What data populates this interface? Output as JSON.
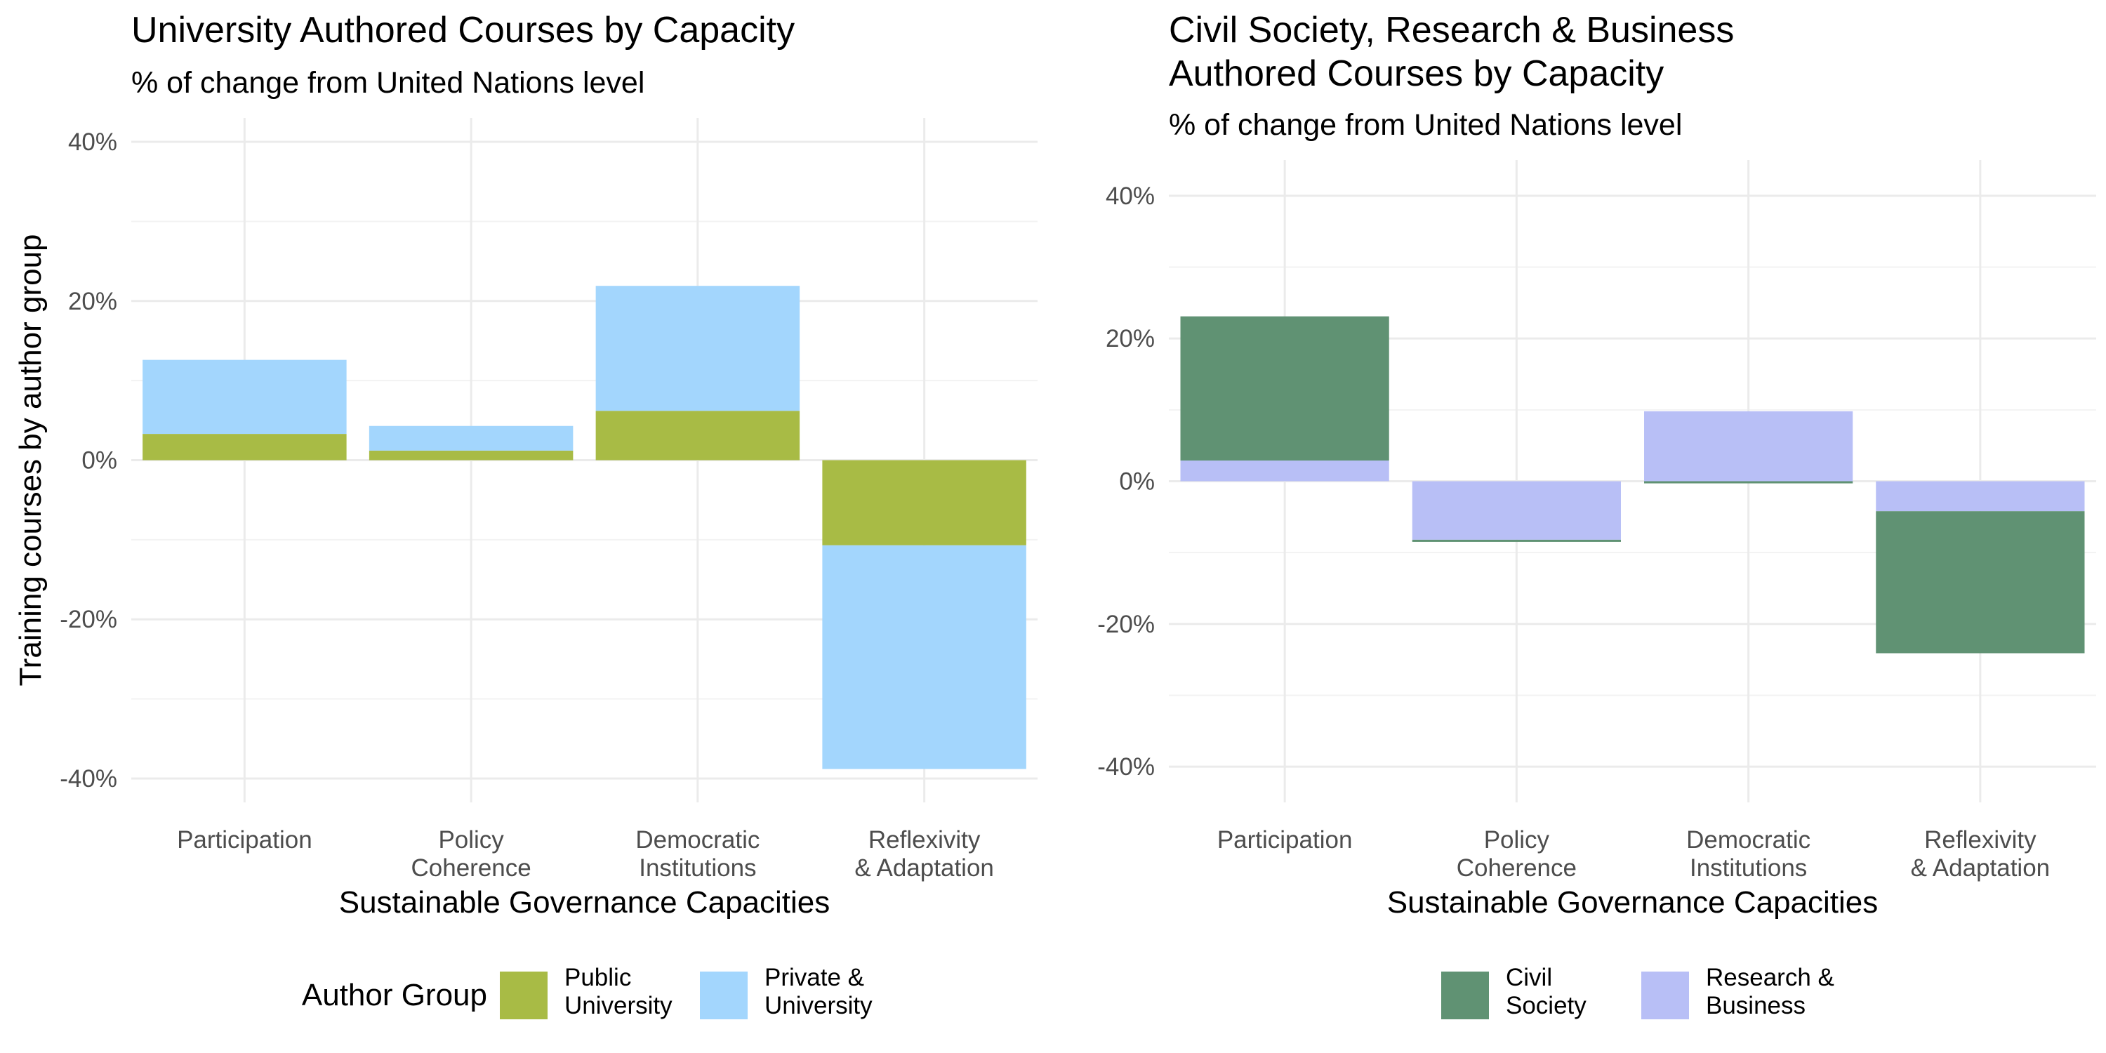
{
  "colors": {
    "public_university": "#a8bb45",
    "private_university": "#a3d6fd",
    "civil_society": "#609273",
    "research_business": "#b8bff6"
  },
  "chart_data": [
    {
      "type": "bar",
      "stacked": true,
      "title": "University Authored Courses by Capacity",
      "subtitle": "% of change from United Nations level",
      "xlabel": "Sustainable Governance Capacities",
      "ylabel": "Training courses by author group",
      "categories": [
        [
          "Participation"
        ],
        [
          "Policy",
          "Coherence"
        ],
        [
          "Democratic",
          "Institutions"
        ],
        [
          "Reflexivity",
          "& Adaptation"
        ]
      ],
      "ylim": [
        -43,
        43
      ],
      "yticks": [
        40,
        20,
        0,
        -20,
        -40
      ],
      "ytick_labels": [
        "40%",
        "20%",
        "0%",
        "-20%",
        "-40%"
      ],
      "grid": true,
      "legend": {
        "position": "bottom",
        "title": "Author Group",
        "entries": [
          {
            "label": [
              "Public",
              "University"
            ],
            "color_key": "public_university"
          },
          {
            "label": [
              "Private &",
              "University"
            ],
            "color_key": "private_university"
          }
        ]
      },
      "series": [
        {
          "key": "public_university",
          "values": [
            3.3,
            1.2,
            6.2,
            -10.7
          ]
        },
        {
          "key": "private_university",
          "values": [
            9.3,
            3.1,
            15.7,
            -28.1
          ]
        }
      ]
    },
    {
      "type": "bar",
      "stacked": true,
      "title": [
        "Civil Society, Research & Business",
        "Authored Courses by Capacity"
      ],
      "subtitle": "% of change from United Nations level",
      "xlabel": "Sustainable Governance Capacities",
      "ylabel": "",
      "categories": [
        [
          "Participation"
        ],
        [
          "Policy",
          "Coherence"
        ],
        [
          "Democratic",
          "Institutions"
        ],
        [
          "Reflexivity",
          "& Adaptation"
        ]
      ],
      "ylim": [
        -45,
        45
      ],
      "yticks": [
        40,
        20,
        0,
        -20,
        -40
      ],
      "ytick_labels": [
        "40%",
        "20%",
        "0%",
        "-20%",
        "-40%"
      ],
      "grid": true,
      "legend": {
        "position": "bottom",
        "title": "",
        "entries": [
          {
            "label": [
              "Civil",
              "Society"
            ],
            "color_key": "civil_society"
          },
          {
            "label": [
              "Research &",
              "Business"
            ],
            "color_key": "research_business"
          }
        ]
      },
      "series": [
        {
          "key": "research_business",
          "values": [
            2.9,
            -8.2,
            9.8,
            -4.2
          ]
        },
        {
          "key": "civil_society",
          "values": [
            20.2,
            -0.3,
            -0.3,
            -19.9
          ]
        }
      ]
    }
  ]
}
